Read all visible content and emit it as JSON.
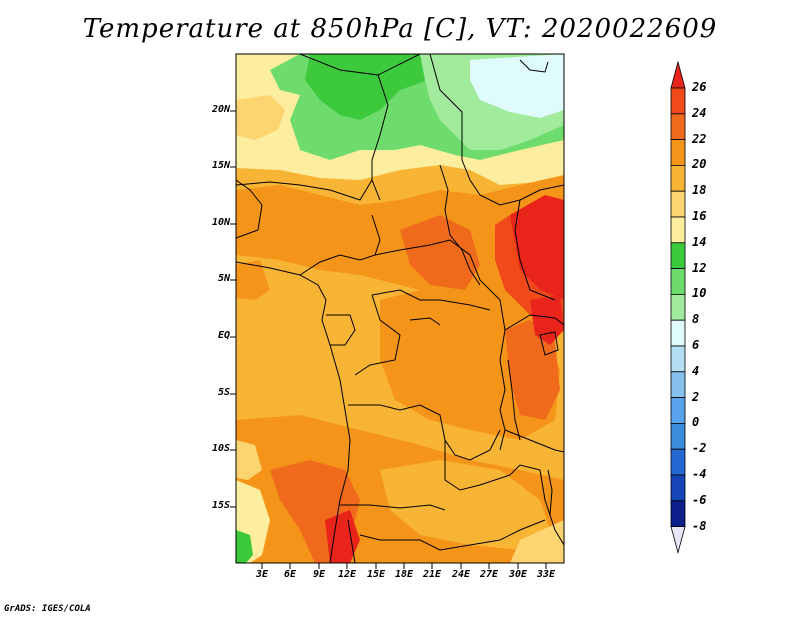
{
  "title": "Temperature at 850hPa [C], VT: 2020022609",
  "credit": "GrADS: IGES/COLA",
  "lat_labels": [
    "20N",
    "15N",
    "10N",
    "5N",
    "EQ",
    "5S",
    "10S",
    "15S"
  ],
  "lon_labels": [
    "3E",
    "6E",
    "9E",
    "12E",
    "15E",
    "18E",
    "21E",
    "24E",
    "27E",
    "30E",
    "33E"
  ],
  "colorbar": {
    "labels": [
      "26",
      "24",
      "22",
      "20",
      "18",
      "16",
      "14",
      "12",
      "10",
      "8",
      "6",
      "4",
      "2",
      "0",
      "-2",
      "-4",
      "-6",
      "-8"
    ],
    "colors": [
      "#e8241b",
      "#f0491a",
      "#f06a1c",
      "#f49419",
      "#f8b535",
      "#fcd470",
      "#fcee9e",
      "#3cc93c",
      "#6ddc6d",
      "#a2eb9d",
      "#e0fbfb",
      "#b4def2",
      "#86c1ee",
      "#5aa4ee",
      "#3c8cdc",
      "#2468d2",
      "#1645b7",
      "#0c1f8a",
      "#e6e6f8"
    ]
  }
}
